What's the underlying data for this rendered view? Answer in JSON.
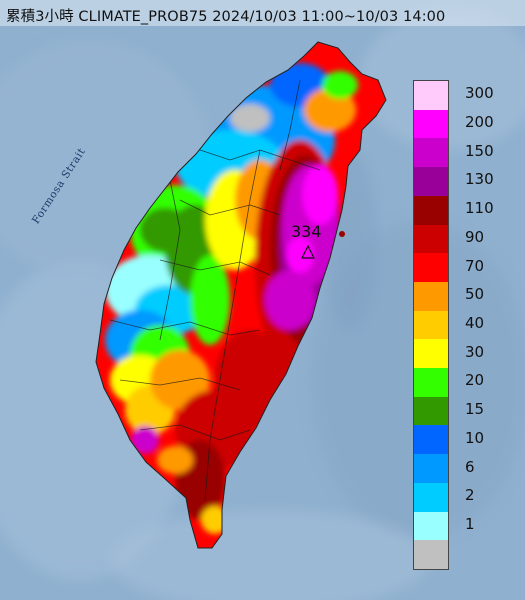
{
  "title": "累積3小時 CLIMATE_PROB75 2024/10/03 11:00~10/03 14:00",
  "map": {
    "strait_label": "Formosa Strait",
    "peak": {
      "value": "334",
      "marker": "triangle-marker-icon"
    }
  },
  "legend": {
    "units": "",
    "items": [
      {
        "label": "300",
        "color": "#ffcbfb"
      },
      {
        "label": "200",
        "color": "#ff00ff"
      },
      {
        "label": "150",
        "color": "#cc00cc"
      },
      {
        "label": "130",
        "color": "#990099"
      },
      {
        "label": "110",
        "color": "#990000"
      },
      {
        "label": "90",
        "color": "#cc0000"
      },
      {
        "label": "70",
        "color": "#ff0000"
      },
      {
        "label": "50",
        "color": "#ff9900"
      },
      {
        "label": "40",
        "color": "#ffcc00"
      },
      {
        "label": "30",
        "color": "#ffff00"
      },
      {
        "label": "20",
        "color": "#33ff00"
      },
      {
        "label": "15",
        "color": "#339900"
      },
      {
        "label": "10",
        "color": "#0066ff"
      },
      {
        "label": "6",
        "color": "#0099ff"
      },
      {
        "label": "2",
        "color": "#00ccff"
      },
      {
        "label": "1",
        "color": "#99ffff"
      },
      {
        "label": "",
        "color": "#c0c0c0"
      }
    ]
  }
}
